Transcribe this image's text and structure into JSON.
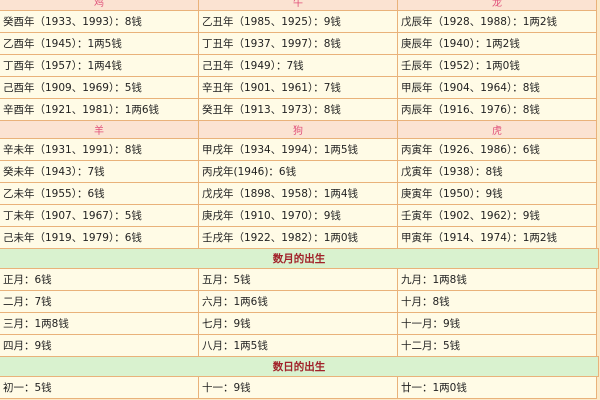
{
  "animal_groups": [
    {
      "headers": [
        "鸡",
        "牛",
        "龙"
      ],
      "rows": [
        [
          "癸酉年（1933、1993）：8钱",
          "乙丑年（1985、1925）：9钱",
          "戊辰年（1928、1988）：1两2钱"
        ],
        [
          "乙酉年（1945）：1两5钱",
          "丁丑年（1937、1997）：8钱",
          "庚辰年（1940）：1两2钱"
        ],
        [
          "丁酉年（1957）：1两4钱",
          "己丑年（1949）：7钱",
          "壬辰年（1952）：1两0钱"
        ],
        [
          "己酉年（1909、1969）：5钱",
          "辛丑年（1901、1961）：7钱",
          "甲辰年（1904、1964）：8钱"
        ],
        [
          "辛酉年（1921、1981）：1两6钱",
          "癸丑年（1913、1973）：8钱",
          "丙辰年（1916、1976）：8钱"
        ]
      ]
    },
    {
      "headers": [
        "羊",
        "狗",
        "虎"
      ],
      "rows": [
        [
          "辛未年（1931、1991）：8钱",
          "甲戌年（1934、1994）：1两5钱",
          "丙寅年（1926、1986）：6钱"
        ],
        [
          "癸未年（1943）：7钱",
          "丙戌年(1946)：6钱",
          "戊寅年（1938）：8钱"
        ],
        [
          "乙未年（1955）：6钱",
          "戊戌年（1898、1958）：1两4钱",
          "庚寅年（1950）：9钱"
        ],
        [
          "丁未年（1907、1967）：5钱",
          "庚戌年（1910、1970）：9钱",
          "壬寅年（1902、1962）：9钱"
        ],
        [
          "己未年（1919、1979）：6钱",
          "壬戌年（1922、1982）：1两0钱",
          "甲寅年（1914、1974）：1两2钱"
        ]
      ]
    }
  ],
  "sections": [
    {
      "title": "数月的出生",
      "rows": [
        [
          "正月：6钱",
          "五月：5钱",
          "九月：1两8钱"
        ],
        [
          "二月：7钱",
          "六月：1两6钱",
          "十月：8钱"
        ],
        [
          "三月：1两8钱",
          "七月：9钱",
          "十一月：9钱"
        ],
        [
          "四月：9钱",
          "八月：1两5钱",
          "十二月：5钱"
        ]
      ]
    },
    {
      "title": "数日的出生",
      "rows": [
        [
          "初一：5钱",
          "十一：9钱",
          "廿一：1两0钱"
        ]
      ]
    }
  ]
}
